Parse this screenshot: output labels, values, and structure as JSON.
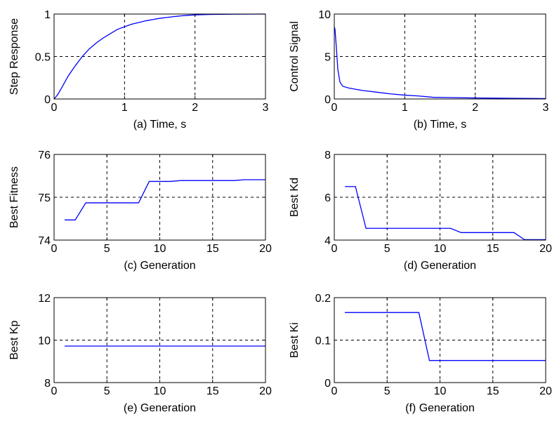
{
  "chart_data": [
    {
      "type": "line",
      "xlabel": "(a) Time, s",
      "ylabel": "Step Response",
      "xlim": [
        0,
        3
      ],
      "ylim": [
        0,
        1
      ],
      "xticks": [
        0,
        1,
        2,
        3
      ],
      "yticks": [
        0,
        0.5,
        1
      ],
      "grid": true,
      "series": [
        {
          "color": "#0000ff",
          "x": [
            0,
            0.05,
            0.1,
            0.2,
            0.3,
            0.4,
            0.5,
            0.6,
            0.7,
            0.8,
            0.9,
            1.0,
            1.1,
            1.2,
            1.3,
            1.4,
            1.5,
            1.6,
            1.7,
            1.8,
            1.9,
            2.0,
            2.2,
            2.5,
            3.0
          ],
          "y": [
            0,
            0.05,
            0.12,
            0.27,
            0.39,
            0.5,
            0.59,
            0.66,
            0.72,
            0.77,
            0.82,
            0.85,
            0.88,
            0.9,
            0.92,
            0.935,
            0.95,
            0.96,
            0.97,
            0.978,
            0.985,
            0.99,
            0.995,
            0.998,
            1.0
          ]
        }
      ]
    },
    {
      "type": "line",
      "xlabel": "(b) Time, s",
      "ylabel": "Control Signal",
      "xlim": [
        0,
        3
      ],
      "ylim": [
        0,
        10
      ],
      "xticks": [
        0,
        1,
        2,
        3
      ],
      "yticks": [
        0,
        5,
        10
      ],
      "grid": true,
      "series": [
        {
          "color": "#0000ff",
          "x": [
            0,
            0.01,
            0.03,
            0.05,
            0.08,
            0.12,
            0.2,
            0.3,
            0.4,
            0.6,
            0.8,
            1.0,
            1.2,
            1.4,
            2.0,
            2.5,
            3.0
          ],
          "y": [
            8.5,
            8.2,
            6.0,
            3.5,
            2.0,
            1.5,
            1.3,
            1.15,
            1.0,
            0.8,
            0.6,
            0.45,
            0.35,
            0.2,
            0.12,
            0.08,
            0.05
          ]
        }
      ]
    },
    {
      "type": "line",
      "xlabel": "(c) Generation",
      "ylabel": "Best Fitness",
      "xlim": [
        0,
        20
      ],
      "ylim": [
        74,
        76
      ],
      "xticks": [
        0,
        5,
        10,
        15,
        20
      ],
      "yticks": [
        74,
        75,
        76
      ],
      "grid": true,
      "series": [
        {
          "color": "#0000ff",
          "x": [
            1,
            2,
            3,
            4,
            5,
            6,
            7,
            8,
            9,
            10,
            11,
            12,
            13,
            14,
            15,
            16,
            17,
            18,
            19,
            20
          ],
          "y": [
            74.47,
            74.47,
            74.87,
            74.87,
            74.87,
            74.87,
            74.87,
            74.87,
            75.37,
            75.37,
            75.37,
            75.39,
            75.39,
            75.39,
            75.39,
            75.39,
            75.39,
            75.41,
            75.41,
            75.41
          ]
        }
      ]
    },
    {
      "type": "line",
      "xlabel": "(d) Generation",
      "ylabel": "Best Kd",
      "xlim": [
        0,
        20
      ],
      "ylim": [
        4,
        8
      ],
      "xticks": [
        0,
        5,
        10,
        15,
        20
      ],
      "yticks": [
        4,
        6,
        8
      ],
      "grid": true,
      "series": [
        {
          "color": "#0000ff",
          "x": [
            1,
            2,
            3,
            4,
            5,
            6,
            7,
            8,
            9,
            10,
            11,
            12,
            13,
            14,
            15,
            16,
            17,
            18,
            19,
            20
          ],
          "y": [
            6.5,
            6.5,
            4.55,
            4.55,
            4.55,
            4.55,
            4.55,
            4.55,
            4.55,
            4.55,
            4.55,
            4.35,
            4.35,
            4.35,
            4.35,
            4.35,
            4.35,
            4.02,
            4.02,
            4.02
          ]
        }
      ]
    },
    {
      "type": "line",
      "xlabel": "(e) Generation",
      "ylabel": "Best Kp",
      "xlim": [
        0,
        20
      ],
      "ylim": [
        8,
        12
      ],
      "xticks": [
        0,
        5,
        10,
        15,
        20
      ],
      "yticks": [
        8,
        10,
        12
      ],
      "grid": true,
      "series": [
        {
          "color": "#0000ff",
          "x": [
            1,
            2,
            3,
            4,
            5,
            6,
            7,
            8,
            9,
            10,
            11,
            12,
            13,
            14,
            15,
            16,
            17,
            18,
            19,
            20
          ],
          "y": [
            9.72,
            9.72,
            9.72,
            9.72,
            9.72,
            9.72,
            9.72,
            9.72,
            9.72,
            9.72,
            9.72,
            9.72,
            9.72,
            9.72,
            9.72,
            9.72,
            9.72,
            9.72,
            9.72,
            9.72
          ]
        }
      ]
    },
    {
      "type": "line",
      "xlabel": "(f) Generation",
      "ylabel": "Best Ki",
      "xlim": [
        0,
        20
      ],
      "ylim": [
        0,
        0.2
      ],
      "xticks": [
        0,
        5,
        10,
        15,
        20
      ],
      "yticks": [
        0,
        0.1,
        0.2
      ],
      "grid": true,
      "series": [
        {
          "color": "#0000ff",
          "x": [
            1,
            2,
            3,
            4,
            5,
            6,
            7,
            8,
            9,
            10,
            11,
            12,
            13,
            14,
            15,
            16,
            17,
            18,
            19,
            20
          ],
          "y": [
            0.165,
            0.165,
            0.165,
            0.165,
            0.165,
            0.165,
            0.165,
            0.165,
            0.052,
            0.052,
            0.052,
            0.052,
            0.052,
            0.052,
            0.052,
            0.052,
            0.052,
            0.052,
            0.052,
            0.052
          ]
        }
      ]
    }
  ]
}
